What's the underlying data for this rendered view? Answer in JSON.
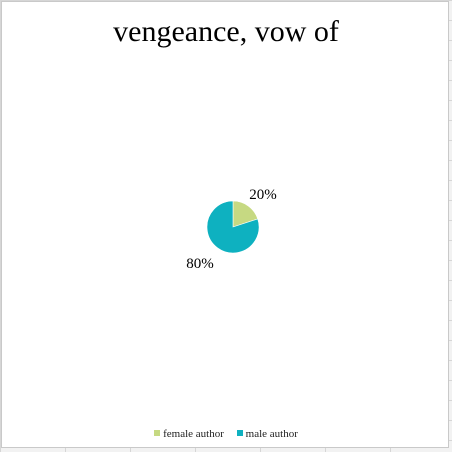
{
  "chart_data": {
    "type": "pie",
    "title": "vengeance, vow of",
    "slices": [
      {
        "label": "female author",
        "value": 20,
        "display": "20%",
        "color": "#c6d982"
      },
      {
        "label": "male author",
        "value": 80,
        "display": "80%",
        "color": "#0eb1c0"
      }
    ],
    "legend_position": "bottom"
  }
}
